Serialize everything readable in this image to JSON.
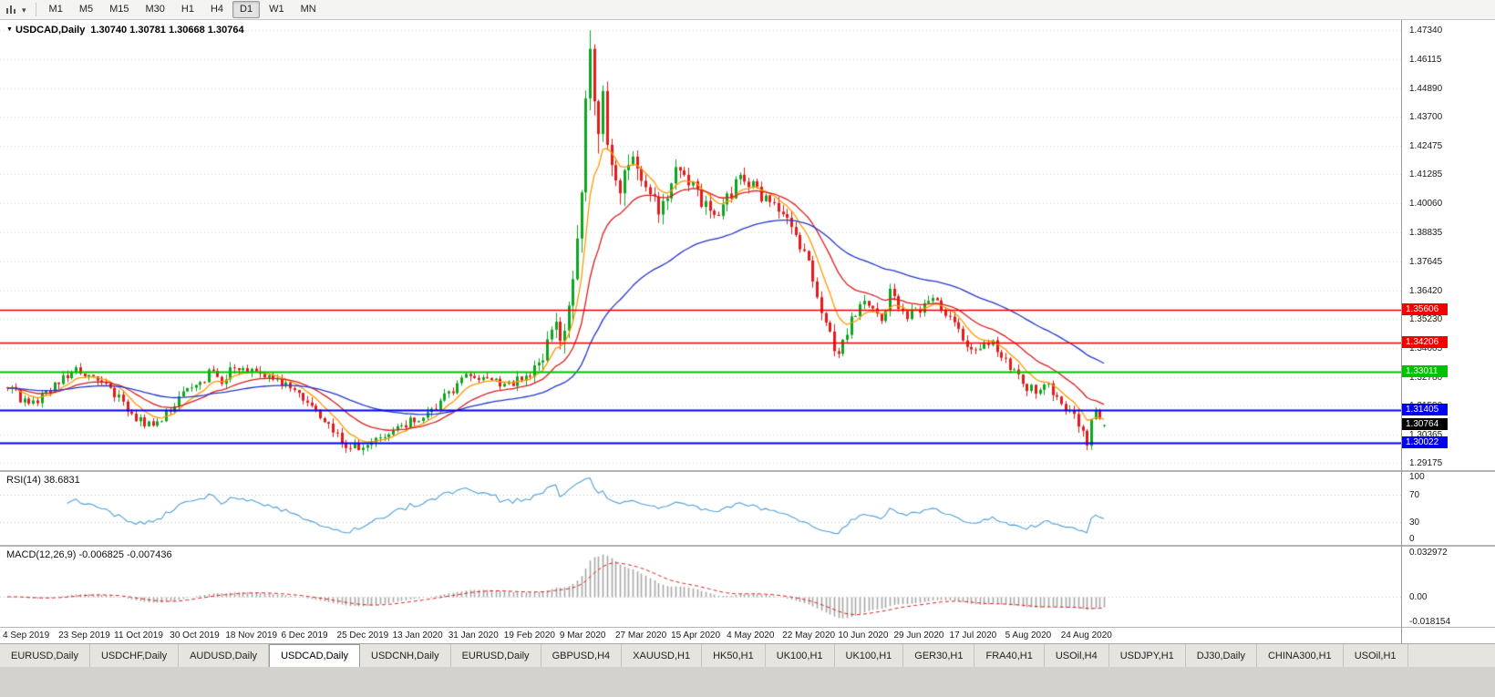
{
  "icons": {
    "symbol_dropdown": "▼",
    "caret": "▾",
    "chart_tool": "bar-chart"
  },
  "toolbar": {
    "timeframes": [
      "M1",
      "M5",
      "M15",
      "M30",
      "H1",
      "H4",
      "D1",
      "W1",
      "MN"
    ],
    "active_timeframe": "D1"
  },
  "chart_header": {
    "symbol": "USDCAD,Daily",
    "ohlc_text": "1.30740 1.30781 1.30668 1.30764"
  },
  "price_axis": {
    "labels": [
      "1.47340",
      "1.46115",
      "1.44890",
      "1.43700",
      "1.42475",
      "1.41285",
      "1.40060",
      "1.38835",
      "1.37645",
      "1.36420",
      "1.35230",
      "1.34005",
      "1.32780",
      "1.31590",
      "1.30365",
      "1.29175"
    ]
  },
  "price_tags": [
    {
      "text": "1.35606",
      "price": 1.35606,
      "color": "#f00000"
    },
    {
      "text": "1.34206",
      "price": 1.34206,
      "color": "#f00000"
    },
    {
      "text": "1.33011",
      "price": 1.33011,
      "color": "#00c000"
    },
    {
      "text": "1.31405",
      "price": 1.31405,
      "color": "#0000f0"
    },
    {
      "text": "1.30764",
      "price": 1.30764,
      "color": "#000000"
    },
    {
      "text": "1.30022",
      "price": 1.30022,
      "color": "#0000f0"
    }
  ],
  "rsi_panel": {
    "label": "RSI(14) 38.6831",
    "value": 38.6831,
    "axis_labels": [
      "100",
      "70",
      "30",
      "0"
    ],
    "axis_values": [
      100,
      70,
      30,
      0
    ],
    "levels": [
      70,
      30
    ],
    "line_color": "#4f9fdb"
  },
  "macd_panel": {
    "label": "MACD(12,26,9) -0.006825 -0.007436",
    "main_value": -0.006825,
    "signal_value": -0.007436,
    "axis_labels": [
      "0.032972",
      "0.00",
      "-0.018154"
    ],
    "axis_values": [
      0.032972,
      0,
      -0.018154
    ],
    "hist_color": "#a8a8a8",
    "signal_color": "#e02020"
  },
  "time_axis": {
    "labels": [
      "4 Sep 2019",
      "23 Sep 2019",
      "11 Oct 2019",
      "30 Oct 2019",
      "18 Nov 2019",
      "6 Dec 2019",
      "25 Dec 2019",
      "13 Jan 2020",
      "31 Jan 2020",
      "19 Feb 2020",
      "9 Mar 2020",
      "27 Mar 2020",
      "15 Apr 2020",
      "4 May 2020",
      "22 May 2020",
      "10 Jun 2020",
      "29 Jun 2020",
      "17 Jul 2020",
      "5 Aug 2020",
      "24 Aug 2020"
    ]
  },
  "tabs": {
    "active_index": 3,
    "items": [
      "EURUSD,Daily",
      "USDCHF,Daily",
      "AUDUSD,Daily",
      "USDCAD,Daily",
      "USDCNH,Daily",
      "EURUSD,Daily",
      "GBPUSD,H4",
      "XAUUSD,H1",
      "HK50,H1",
      "UK100,H1",
      "UK100,H1",
      "GER30,H1",
      "FRA40,H1",
      "USOil,H4",
      "USDJPY,H1",
      "DJ30,Daily",
      "CHINA300,H1",
      "USOil,H1"
    ],
    "active_label": "USDCAD,Daily"
  },
  "chart_data": {
    "type": "candlestick",
    "symbol": "USDCAD",
    "timeframe": "Daily",
    "current": {
      "open": 1.3074,
      "high": 1.30781,
      "low": 1.30668,
      "close": 1.30764
    },
    "y_range": {
      "top": 1.4734,
      "bottom": 1.29175
    },
    "y_ticks": [
      1.4734,
      1.46115,
      1.4489,
      1.437,
      1.42475,
      1.41285,
      1.4006,
      1.38835,
      1.37645,
      1.3642,
      1.3523,
      1.34005,
      1.3278,
      1.3159,
      1.30365,
      1.29175
    ],
    "candle_count": 257,
    "candles_per_tick": 13,
    "up_color": "#0ea520",
    "down_color": "#e51a1a",
    "grid_color": "#dadada",
    "moving_averages": [
      {
        "period": 8,
        "color": "#ff9900"
      },
      {
        "period": 20,
        "color": "#dd1d1d"
      },
      {
        "period": 55,
        "color": "#2438cf"
      }
    ],
    "horizontal_lines": [
      {
        "price": 1.35606,
        "color": "#f00000",
        "width": 1.4
      },
      {
        "price": 1.34206,
        "color": "#f00000",
        "width": 1.4
      },
      {
        "price": 1.33011,
        "color": "#00c000",
        "width": 2
      },
      {
        "price": 1.31405,
        "color": "#0000f0",
        "width": 2
      },
      {
        "price": 1.30022,
        "color": "#0000f0",
        "width": 2
      }
    ],
    "x_tick_dates": [
      "4 Sep 2019",
      "23 Sep 2019",
      "11 Oct 2019",
      "30 Oct 2019",
      "18 Nov 2019",
      "6 Dec 2019",
      "25 Dec 2019",
      "13 Jan 2020",
      "31 Jan 2020",
      "19 Feb 2020",
      "9 Mar 2020",
      "27 Mar 2020",
      "15 Apr 2020",
      "4 May 2020",
      "22 May 2020",
      "10 Jun 2020",
      "29 Jun 2020",
      "17 Jul 2020",
      "5 Aug 2020",
      "24 Aug 2020"
    ],
    "price_path_anchors": [
      [
        0,
        1.3235
      ],
      [
        3,
        1.319
      ],
      [
        6,
        1.3175
      ],
      [
        9,
        1.3215
      ],
      [
        13,
        1.3265
      ],
      [
        16,
        1.33
      ],
      [
        19,
        1.327
      ],
      [
        22,
        1.324
      ],
      [
        26,
        1.32
      ],
      [
        29,
        1.313
      ],
      [
        32,
        1.307
      ],
      [
        35,
        1.309
      ],
      [
        38,
        1.314
      ],
      [
        41,
        1.32
      ],
      [
        44,
        1.325
      ],
      [
        47,
        1.329
      ],
      [
        50,
        1.327
      ],
      [
        52,
        1.33
      ],
      [
        55,
        1.332
      ],
      [
        58,
        1.33
      ],
      [
        61,
        1.328
      ],
      [
        64,
        1.326
      ],
      [
        67,
        1.321
      ],
      [
        70,
        1.316
      ],
      [
        73,
        1.311
      ],
      [
        76,
        1.305
      ],
      [
        79,
        1.3
      ],
      [
        82,
        1.2975
      ],
      [
        85,
        1.3
      ],
      [
        88,
        1.303
      ],
      [
        91,
        1.306
      ],
      [
        94,
        1.309
      ],
      [
        97,
        1.312
      ],
      [
        100,
        1.316
      ],
      [
        103,
        1.321
      ],
      [
        106,
        1.326
      ],
      [
        109,
        1.329
      ],
      [
        112,
        1.327
      ],
      [
        115,
        1.3255
      ],
      [
        118,
        1.325
      ],
      [
        121,
        1.328
      ],
      [
        124,
        1.334
      ],
      [
        126,
        1.342
      ],
      [
        128,
        1.352
      ],
      [
        129,
        1.346
      ],
      [
        131,
        1.356
      ],
      [
        132,
        1.368
      ],
      [
        133,
        1.383
      ],
      [
        134,
        1.405
      ],
      [
        135,
        1.438
      ],
      [
        136,
        1.46
      ],
      [
        137,
        1.445
      ],
      [
        138,
        1.428
      ],
      [
        139,
        1.442
      ],
      [
        140,
        1.423
      ],
      [
        141,
        1.412
      ],
      [
        142,
        1.406
      ],
      [
        144,
        1.413
      ],
      [
        146,
        1.423
      ],
      [
        148,
        1.412
      ],
      [
        150,
        1.406
      ],
      [
        152,
        1.398
      ],
      [
        155,
        1.408
      ],
      [
        157,
        1.417
      ],
      [
        159,
        1.41
      ],
      [
        162,
        1.402
      ],
      [
        165,
        1.396
      ],
      [
        167,
        1.4
      ],
      [
        169,
        1.405
      ],
      [
        171,
        1.412
      ],
      [
        174,
        1.408
      ],
      [
        177,
        1.402
      ],
      [
        180,
        1.399
      ],
      [
        182,
        1.395
      ],
      [
        184,
        1.387
      ],
      [
        186,
        1.379
      ],
      [
        188,
        1.369
      ],
      [
        190,
        1.356
      ],
      [
        192,
        1.344
      ],
      [
        194,
        1.338
      ],
      [
        196,
        1.347
      ],
      [
        198,
        1.355
      ],
      [
        200,
        1.362
      ],
      [
        202,
        1.356
      ],
      [
        204,
        1.35
      ],
      [
        206,
        1.364
      ],
      [
        208,
        1.358
      ],
      [
        210,
        1.354
      ],
      [
        213,
        1.356
      ],
      [
        215,
        1.36
      ],
      [
        217,
        1.358
      ],
      [
        219,
        1.354
      ],
      [
        221,
        1.35
      ],
      [
        224,
        1.342
      ],
      [
        227,
        1.339
      ],
      [
        230,
        1.342
      ],
      [
        232,
        1.337
      ],
      [
        234,
        1.331
      ],
      [
        236,
        1.327
      ],
      [
        238,
        1.324
      ],
      [
        240,
        1.322
      ],
      [
        242,
        1.326
      ],
      [
        244,
        1.322
      ],
      [
        246,
        1.318
      ],
      [
        248,
        1.314
      ],
      [
        250,
        1.309
      ],
      [
        251,
        1.304
      ],
      [
        252,
        1.3005
      ],
      [
        253,
        1.309
      ],
      [
        254,
        1.314
      ],
      [
        255,
        1.3095
      ],
      [
        256,
        1.30764
      ]
    ],
    "volatility_anchors": [
      [
        0,
        0.0042
      ],
      [
        115,
        0.0042
      ],
      [
        124,
        0.006
      ],
      [
        130,
        0.01
      ],
      [
        134,
        0.014
      ],
      [
        138,
        0.015
      ],
      [
        142,
        0.011
      ],
      [
        148,
        0.009
      ],
      [
        155,
        0.007
      ],
      [
        165,
        0.006
      ],
      [
        180,
        0.0055
      ],
      [
        192,
        0.006
      ],
      [
        200,
        0.005
      ],
      [
        212,
        0.0042
      ],
      [
        230,
        0.004
      ],
      [
        244,
        0.0045
      ],
      [
        252,
        0.005
      ],
      [
        256,
        0.0012
      ]
    ]
  }
}
